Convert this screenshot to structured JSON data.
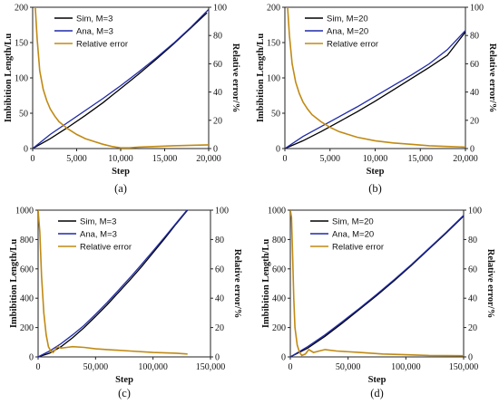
{
  "colors": {
    "sim": "#000000",
    "ana": "#1f2aa8",
    "err": "#c08a14"
  },
  "chart_data": [
    {
      "type": "line",
      "caption": "(a)",
      "xlabel": "Step",
      "ylabel": "Imbibition Length/Lu",
      "y2label": "Relative error/%",
      "xlim": [
        0,
        20000
      ],
      "ylim": [
        0,
        200
      ],
      "y2lim": [
        0,
        100
      ],
      "xticks": [
        0,
        5000,
        10000,
        15000,
        20000
      ],
      "xticklabels": [
        "0",
        "5,000",
        "10,000",
        "15,000",
        "20,000"
      ],
      "yticks": [
        0,
        50,
        100,
        150,
        200
      ],
      "yticklabels": [
        "0",
        "50",
        "100",
        "150",
        "200"
      ],
      "y2ticks": [
        0,
        20,
        40,
        60,
        80,
        100
      ],
      "y2ticklabels": [
        "0",
        "20",
        "40",
        "60",
        "80",
        "100"
      ],
      "series": [
        {
          "name": "Sim, M=3",
          "axis": "left",
          "color": "#000000",
          "x": [
            0,
            2000,
            4000,
            6000,
            8000,
            10000,
            12000,
            14000,
            16000,
            18000,
            19800
          ],
          "y": [
            0,
            14,
            30,
            47,
            65,
            85,
            105,
            126,
            148,
            171,
            192
          ]
        },
        {
          "name": "Ana, M=3",
          "axis": "left",
          "color": "#1f2aa8",
          "x": [
            0,
            2000,
            4000,
            6000,
            8000,
            10000,
            12000,
            14000,
            16000,
            18000,
            20000
          ],
          "y": [
            0,
            20,
            37,
            54,
            71,
            89,
            108,
            128,
            149,
            172,
            197
          ]
        },
        {
          "name": "Relative error",
          "axis": "right",
          "color": "#c08a14",
          "x": [
            300,
            500,
            800,
            1200,
            1600,
            2000,
            2500,
            3000,
            4000,
            5000,
            6000,
            7000,
            8000,
            9000,
            10000,
            11000,
            12000,
            14000,
            16000,
            18000,
            20000
          ],
          "y": [
            100,
            78,
            55,
            42,
            34,
            28,
            23,
            19,
            14,
            10,
            7,
            5,
            3,
            1.5,
            0.5,
            0.5,
            1,
            1.5,
            2,
            2.3,
            2.6
          ]
        }
      ]
    },
    {
      "type": "line",
      "caption": "(b)",
      "xlabel": "Step",
      "ylabel": "Imbibition Length/Lu",
      "y2label": "Relative error/%",
      "xlim": [
        0,
        20000
      ],
      "ylim": [
        0,
        200
      ],
      "y2lim": [
        0,
        100
      ],
      "xticks": [
        0,
        5000,
        10000,
        15000,
        20000
      ],
      "xticklabels": [
        "0",
        "5,000",
        "10,000",
        "15,000",
        "20,000"
      ],
      "yticks": [
        0,
        50,
        100,
        150,
        200
      ],
      "yticklabels": [
        "0",
        "50",
        "100",
        "150",
        "200"
      ],
      "y2ticks": [
        0,
        20,
        40,
        60,
        80,
        100
      ],
      "y2ticklabels": [
        "0",
        "20",
        "40",
        "60",
        "80",
        "100"
      ],
      "series": [
        {
          "name": "Sim, M=20",
          "axis": "left",
          "color": "#000000",
          "x": [
            0,
            2000,
            4000,
            6000,
            8000,
            10000,
            12000,
            14000,
            16000,
            18000,
            20000
          ],
          "y": [
            0,
            11,
            24,
            38,
            52,
            67,
            83,
            99,
            115,
            132,
            165
          ]
        },
        {
          "name": "Ana, M=20",
          "axis": "left",
          "color": "#1f2aa8",
          "x": [
            0,
            2000,
            4000,
            6000,
            8000,
            10000,
            12000,
            14000,
            16000,
            18000,
            20000
          ],
          "y": [
            0,
            17,
            31,
            45,
            59,
            74,
            89,
            104,
            120,
            140,
            167
          ]
        },
        {
          "name": "Relative error",
          "axis": "right",
          "color": "#c08a14",
          "x": [
            300,
            500,
            800,
            1200,
            1600,
            2000,
            2500,
            3000,
            4000,
            5000,
            6000,
            8000,
            10000,
            12000,
            14000,
            16000,
            18000,
            20000
          ],
          "y": [
            100,
            80,
            60,
            47,
            39,
            33,
            28,
            24,
            19,
            15,
            12,
            8,
            5.5,
            4,
            3,
            2,
            1.5,
            1
          ]
        }
      ]
    },
    {
      "type": "line",
      "caption": "(c)",
      "xlabel": "Step",
      "ylabel": "Imbibition Length/Lu",
      "y2label": "Relative error/%",
      "xlim": [
        0,
        150000
      ],
      "ylim": [
        0,
        1000
      ],
      "y2lim": [
        0,
        100
      ],
      "xticks": [
        0,
        50000,
        100000,
        150000
      ],
      "xticklabels": [
        "0",
        "50,000",
        "100,000",
        "150,000"
      ],
      "yticks": [
        0,
        200,
        400,
        600,
        800,
        1000
      ],
      "yticklabels": [
        "0",
        "200",
        "400",
        "600",
        "800",
        "1000"
      ],
      "y2ticks": [
        0,
        20,
        40,
        60,
        80,
        100
      ],
      "y2ticklabels": [
        "0",
        "20",
        "40",
        "60",
        "80",
        "100"
      ],
      "series": [
        {
          "name": "Sim, M=3",
          "axis": "left",
          "color": "#000000",
          "x": [
            0,
            10000,
            20000,
            30000,
            40000,
            50000,
            60000,
            70000,
            80000,
            90000,
            100000,
            110000,
            120000,
            130000
          ],
          "y": [
            0,
            25,
            70,
            130,
            200,
            275,
            355,
            440,
            525,
            615,
            710,
            805,
            905,
            1000
          ]
        },
        {
          "name": "Ana, M=3",
          "axis": "left",
          "color": "#1f2aa8",
          "x": [
            0,
            10000,
            20000,
            30000,
            40000,
            50000,
            60000,
            70000,
            80000,
            90000,
            100000,
            110000,
            120000,
            130000
          ],
          "y": [
            0,
            40,
            90,
            150,
            215,
            290,
            370,
            455,
            540,
            630,
            722,
            815,
            910,
            1005
          ]
        },
        {
          "name": "Relative error",
          "axis": "right",
          "color": "#c08a14",
          "x": [
            0,
            1500,
            3000,
            5000,
            7000,
            9000,
            11000,
            13000,
            15000,
            17000,
            20000,
            25000,
            30000,
            40000,
            50000,
            60000,
            80000,
            100000,
            120000,
            130000
          ],
          "y": [
            100,
            85,
            55,
            30,
            15,
            7,
            4,
            3,
            5,
            7,
            6,
            6.5,
            7,
            6.5,
            5.5,
            5,
            4,
            3,
            2.5,
            2
          ]
        }
      ]
    },
    {
      "type": "line",
      "caption": "(d)",
      "xlabel": "Step",
      "ylabel": "Imbibition Length/Lu",
      "y2label": "Relative error/%",
      "xlim": [
        0,
        150000
      ],
      "ylim": [
        0,
        1000
      ],
      "y2lim": [
        0,
        100
      ],
      "xticks": [
        0,
        50000,
        100000,
        150000
      ],
      "xticklabels": [
        "0",
        "50,000",
        "100,000",
        "150,000"
      ],
      "yticks": [
        0,
        200,
        400,
        600,
        800,
        1000
      ],
      "yticklabels": [
        "0",
        "200",
        "400",
        "600",
        "800",
        "1000"
      ],
      "y2ticks": [
        0,
        20,
        40,
        60,
        80,
        100
      ],
      "y2ticklabels": [
        "0",
        "20",
        "40",
        "60",
        "80",
        "100"
      ],
      "series": [
        {
          "name": "Sim, M=20",
          "axis": "left",
          "color": "#000000",
          "x": [
            0,
            15000,
            30000,
            45000,
            60000,
            75000,
            90000,
            105000,
            120000,
            135000,
            150000
          ],
          "y": [
            0,
            60,
            140,
            230,
            325,
            420,
            520,
            625,
            735,
            845,
            960
          ]
        },
        {
          "name": "Ana, M=20",
          "axis": "left",
          "color": "#1f2aa8",
          "x": [
            0,
            15000,
            30000,
            45000,
            60000,
            75000,
            90000,
            105000,
            120000,
            135000,
            150000
          ],
          "y": [
            0,
            70,
            150,
            240,
            332,
            428,
            527,
            630,
            740,
            850,
            965
          ]
        },
        {
          "name": "Relative error",
          "axis": "right",
          "color": "#c08a14",
          "x": [
            0,
            1000,
            2000,
            3000,
            4000,
            6000,
            8000,
            10000,
            13000,
            16000,
            20000,
            25000,
            30000,
            40000,
            60000,
            80000,
            100000,
            120000,
            150000
          ],
          "y": [
            100,
            95,
            70,
            40,
            20,
            8,
            3,
            1,
            2,
            5,
            3,
            4,
            5,
            4,
            3,
            2,
            1.5,
            1,
            0.8
          ]
        }
      ]
    }
  ]
}
